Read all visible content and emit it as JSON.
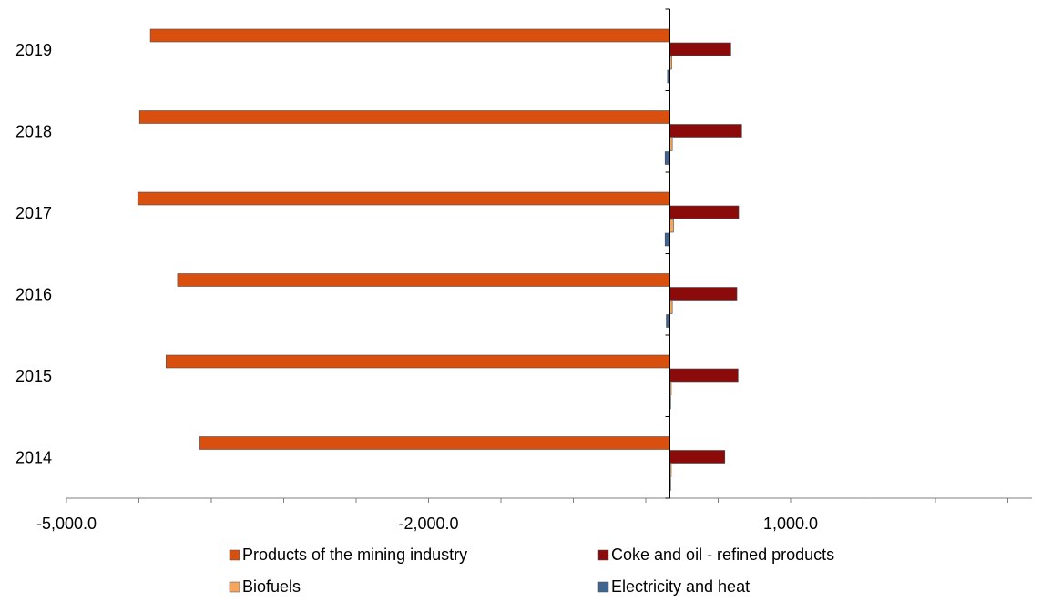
{
  "chart_data": {
    "type": "bar",
    "orientation": "horizontal",
    "categories": [
      "2019",
      "2018",
      "2017",
      "2016",
      "2015",
      "2014"
    ],
    "series": [
      {
        "name": "Products of the mining industry",
        "color": "#D9500E",
        "values": [
          -4305,
          -4395,
          -4410,
          -4080,
          -4175,
          -3895
        ]
      },
      {
        "name": "Coke and oil - refined products",
        "color": "#8B0A0A",
        "values": [
          505,
          595,
          570,
          555,
          565,
          455
        ]
      },
      {
        "name": "Biofuels",
        "color": "#F6A55C",
        "values": [
          15,
          20,
          30,
          20,
          10,
          5
        ]
      },
      {
        "name": "Electricity and heat",
        "color": "#41658F",
        "values": [
          -20,
          -40,
          -40,
          -30,
          -5,
          -5
        ]
      }
    ],
    "xlim": [
      -5000,
      3000
    ],
    "x_ticks": [
      {
        "value": -5000,
        "label": "-5,000.0"
      },
      {
        "value": -2000,
        "label": "-2,000.0"
      },
      {
        "value": 1000,
        "label": "1,000.0"
      }
    ],
    "x_minor_tick_step": 600,
    "title": "",
    "xlabel": "",
    "ylabel": "",
    "grid": false,
    "legend_position": "bottom"
  }
}
